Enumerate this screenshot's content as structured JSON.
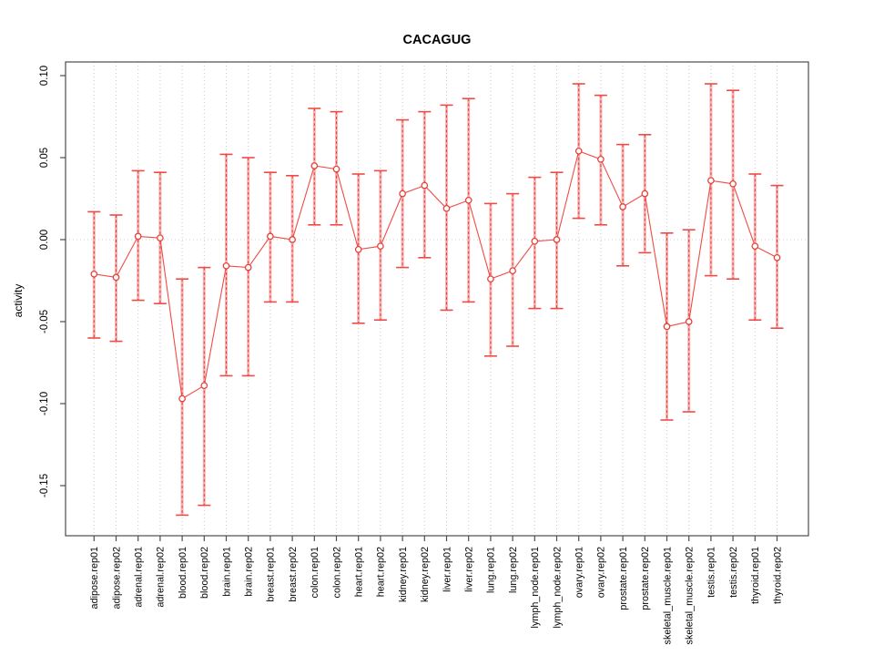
{
  "chart_data": {
    "type": "scatter",
    "title": "CACAGUG",
    "xlabel": "",
    "ylabel": "activity",
    "legend": "none",
    "grid": "dotted vertical line at every category; dotted horizontal line at y=0",
    "ylim": [
      -0.18,
      0.108
    ],
    "yticks": [
      0.1,
      0.05,
      0.0,
      -0.05,
      -0.1,
      -0.15
    ],
    "categories": [
      "adipose.rep01",
      "adipose.rep02",
      "adrenal.rep01",
      "adrenal.rep02",
      "blood.rep01",
      "blood.rep02",
      "brain.rep01",
      "brain.rep02",
      "breast.rep01",
      "breast.rep02",
      "colon.rep01",
      "colon.rep02",
      "heart.rep01",
      "heart.rep02",
      "kidney.rep01",
      "kidney.rep02",
      "liver.rep01",
      "liver.rep02",
      "lung.rep01",
      "lung.rep02",
      "lymph_node.rep01",
      "lymph_node.rep02",
      "ovary.rep01",
      "ovary.rep02",
      "prostate.rep01",
      "prostate.rep02",
      "skeletal_muscle.rep01",
      "skeletal_muscle.rep02",
      "testis.rep01",
      "testis.rep02",
      "thyroid.rep01",
      "thyroid.rep02"
    ],
    "series": [
      {
        "name": "activity",
        "values": [
          -0.021,
          -0.023,
          0.002,
          0.001,
          -0.097,
          -0.089,
          -0.016,
          -0.017,
          0.002,
          0.0,
          0.045,
          0.043,
          -0.006,
          -0.004,
          0.028,
          0.033,
          0.019,
          0.024,
          -0.024,
          -0.019,
          -0.001,
          0.0,
          0.054,
          0.049,
          0.02,
          0.028,
          -0.053,
          -0.05,
          0.036,
          0.034,
          -0.004,
          -0.011
        ],
        "upper": [
          0.017,
          0.015,
          0.042,
          0.041,
          -0.024,
          -0.017,
          0.052,
          0.05,
          0.041,
          0.039,
          0.08,
          0.078,
          0.04,
          0.042,
          0.073,
          0.078,
          0.082,
          0.086,
          0.022,
          0.028,
          0.038,
          0.041,
          0.095,
          0.088,
          0.058,
          0.064,
          0.004,
          0.006,
          0.095,
          0.091,
          0.04,
          0.033
        ],
        "lower": [
          -0.06,
          -0.062,
          -0.037,
          -0.039,
          -0.168,
          -0.162,
          -0.083,
          -0.083,
          -0.038,
          -0.038,
          0.009,
          0.009,
          -0.051,
          -0.049,
          -0.017,
          -0.011,
          -0.043,
          -0.038,
          -0.071,
          -0.065,
          -0.042,
          -0.042,
          0.013,
          0.009,
          -0.016,
          -0.008,
          -0.11,
          -0.105,
          -0.022,
          -0.024,
          -0.049,
          -0.054
        ]
      }
    ],
    "colors": {
      "point_stroke": "#e8403a",
      "series_line": "#ef4b46",
      "errorbar_fill": "#f9a0a0",
      "errorbar_dash": "#e04038",
      "errorbar_cap": "#ef4b46",
      "grid": "#c9c9c9",
      "zero_line": "#cccccc",
      "axis": "#4d4d4d",
      "text": "#000000"
    }
  }
}
